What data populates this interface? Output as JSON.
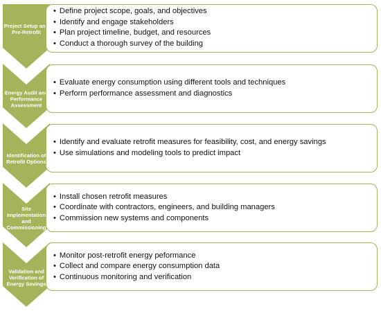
{
  "colors": {
    "chevron_fill": "#a5b45a",
    "box_border": "#a5b45a",
    "text": "#111111",
    "chevron_text": "#ffffff"
  },
  "steps": [
    {
      "label_lines": [
        "Project Setup and",
        "Pre-Retrofit"
      ],
      "bullets": [
        "Define project scope, goals, and objectives",
        "Identify and engage stakeholders",
        "Plan project timeline, budget, and resources",
        "Conduct a thorough survey of the building"
      ]
    },
    {
      "label_lines": [
        "Energy Audit and",
        "Performance",
        "Assessment"
      ],
      "bullets": [
        "Evaluate energy consumption using different tools and techniques",
        "Perform performance assessment and diagnostics"
      ]
    },
    {
      "label_lines": [
        "Identification of",
        "Retrofit Options"
      ],
      "bullets": [
        "Identify and evaluate retrofit measures for feasibility, cost, and energy savings",
        "Use simulations and modeling tools to predict impact"
      ]
    },
    {
      "label_lines": [
        "Site",
        "Implementation",
        "and",
        "Commissioning"
      ],
      "bullets": [
        "Install chosen retrofit measures",
        "Coordinate with contractors, engineers, and building managers",
        "Commission new systems and components"
      ]
    },
    {
      "label_lines": [
        "Validation and",
        "Verification of",
        "Energy Savings"
      ],
      "bullets": [
        "Monitor post-retrofit energy peformance",
        "Collect and compare energy consumption data",
        "Continuous monitoring and verification"
      ]
    }
  ]
}
